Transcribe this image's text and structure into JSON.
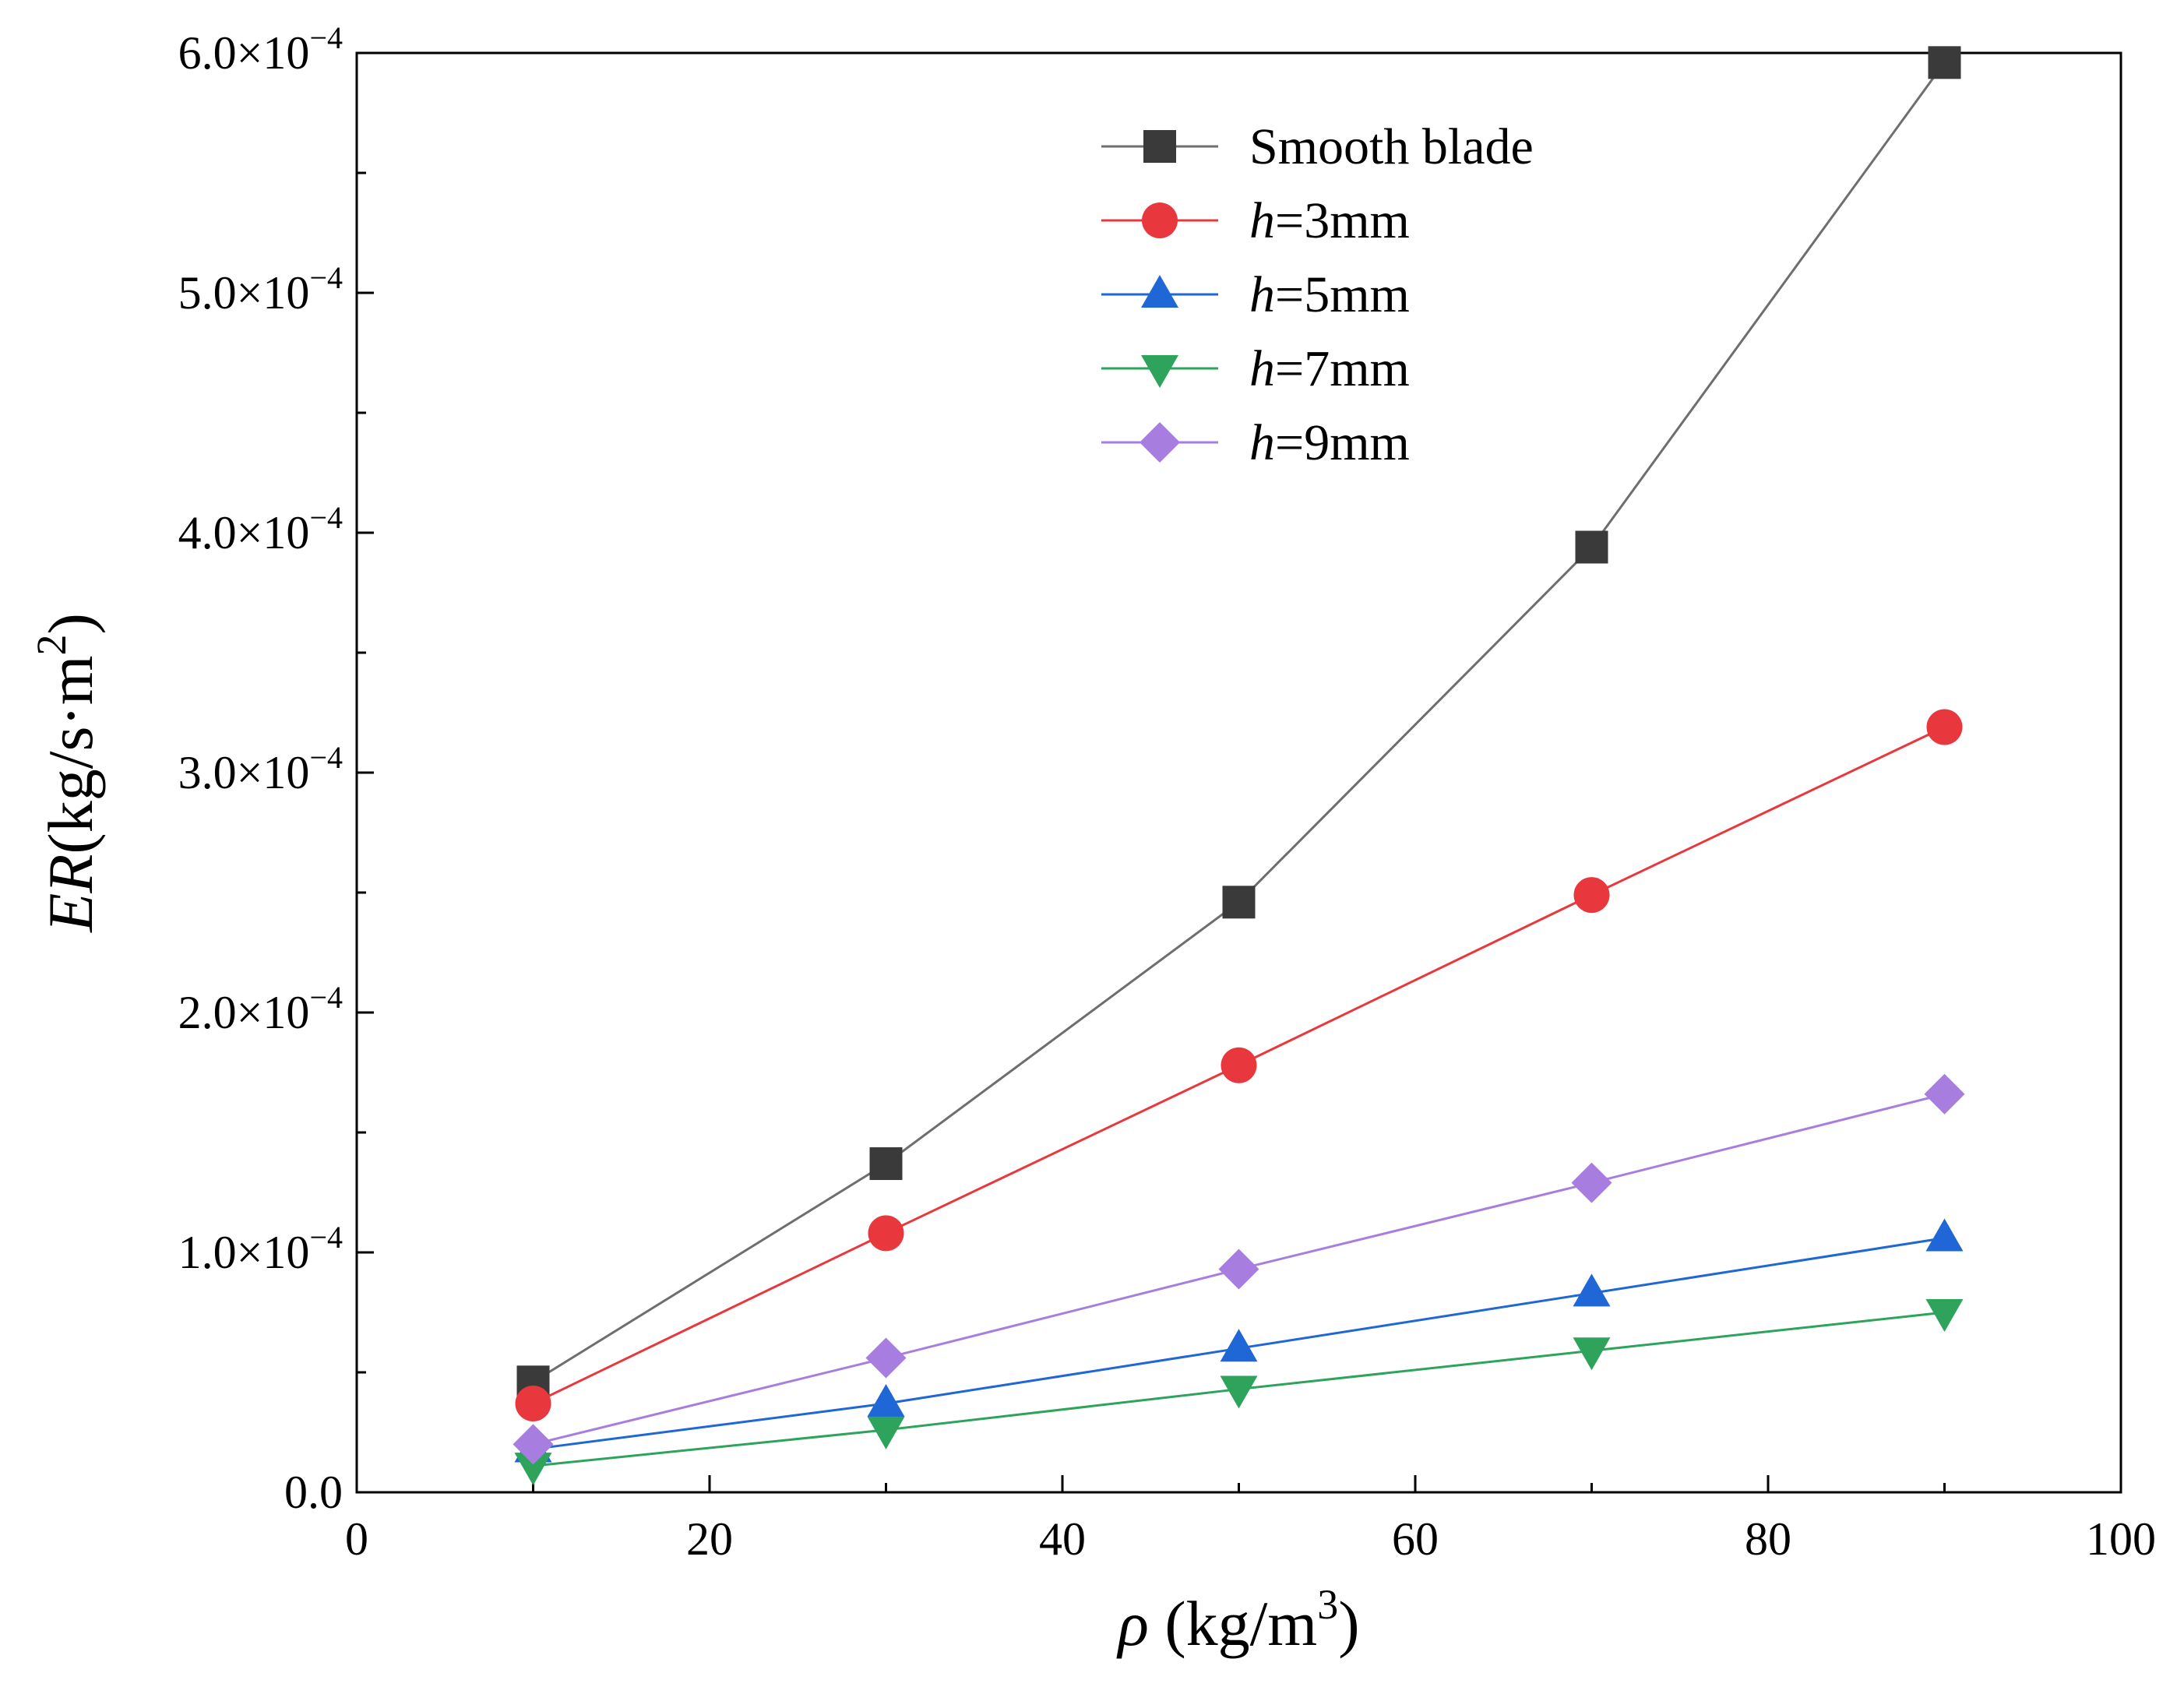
{
  "chart_data": {
    "type": "line",
    "title": "",
    "xlabel": {
      "symbol": "ρ",
      "unit_open": " (kg/m",
      "unit_exp": "3",
      "unit_close": ")"
    },
    "ylabel": {
      "symbol": "ER",
      "unit_open": "(kg/s·m",
      "unit_exp": "2",
      "unit_close": ")"
    },
    "xlim": [
      0,
      100
    ],
    "ylim": [
      0,
      0.0006
    ],
    "grid": false,
    "legend_position": "top-center",
    "x_ticks": [
      {
        "value": 0,
        "label": "0"
      },
      {
        "value": 20,
        "label": "20"
      },
      {
        "value": 40,
        "label": "40"
      },
      {
        "value": 60,
        "label": "60"
      },
      {
        "value": 80,
        "label": "80"
      },
      {
        "value": 100,
        "label": "100"
      }
    ],
    "x_minor_ticks": [
      10,
      30,
      50,
      70,
      90
    ],
    "y_ticks": [
      {
        "value": 0,
        "mantissa": "0.0",
        "exp": ""
      },
      {
        "value": 0.0001,
        "mantissa": "1.0×10",
        "exp": "−4"
      },
      {
        "value": 0.0002,
        "mantissa": "2.0×10",
        "exp": "−4"
      },
      {
        "value": 0.0003,
        "mantissa": "3.0×10",
        "exp": "−4"
      },
      {
        "value": 0.0004,
        "mantissa": "4.0×10",
        "exp": "−4"
      },
      {
        "value": 0.0005,
        "mantissa": "5.0×10",
        "exp": "−4"
      },
      {
        "value": 0.0006,
        "mantissa": "6.0×10",
        "exp": "−4"
      }
    ],
    "y_minor_ticks": [
      5e-05,
      0.00015,
      0.00025,
      0.00035,
      0.00045,
      0.00055
    ],
    "x": [
      10,
      30,
      50,
      70,
      90
    ],
    "series": [
      {
        "name": "Smooth blade",
        "name_prefix": "",
        "name_suffix": "Smooth blade",
        "marker": "square",
        "color": "#3a3a3a",
        "line_color": "#6e6e6e",
        "values": [
          4.6e-05,
          0.000137,
          0.000246,
          0.000394,
          0.000596
        ]
      },
      {
        "name": "h=3mm",
        "name_prefix": "h",
        "name_suffix": "=3mm",
        "marker": "circle",
        "color": "#e8383d",
        "line_color": "#e8383d",
        "values": [
          3.7e-05,
          0.000108,
          0.000178,
          0.000249,
          0.000319
        ]
      },
      {
        "name": "h=5mm",
        "name_prefix": "h",
        "name_suffix": "=5mm",
        "marker": "triangle-up",
        "color": "#1f66d6",
        "line_color": "#1f66d6",
        "values": [
          1.8e-05,
          3.7e-05,
          6e-05,
          8.3e-05,
          0.000106
        ]
      },
      {
        "name": "h=7mm",
        "name_prefix": "h",
        "name_suffix": "=7mm",
        "marker": "triangle-down",
        "color": "#2ea35c",
        "line_color": "#2ea35c",
        "values": [
          1.1e-05,
          2.6e-05,
          4.3e-05,
          5.9e-05,
          7.5e-05
        ]
      },
      {
        "name": "h=9mm",
        "name_prefix": "h",
        "name_suffix": "=9mm",
        "marker": "diamond",
        "color": "#a77ee0",
        "line_color": "#a77ee0",
        "values": [
          2e-05,
          5.6e-05,
          9.3e-05,
          0.000129,
          0.000166
        ]
      }
    ]
  }
}
